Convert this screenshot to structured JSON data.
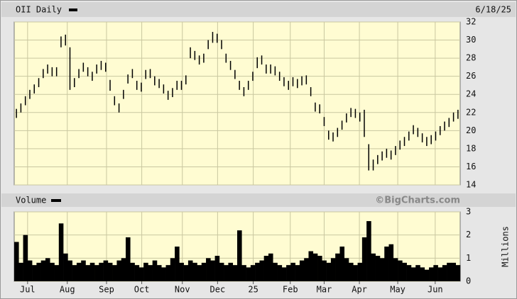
{
  "chart_data": [
    {
      "type": "range",
      "title": "OII Daily",
      "date": "6/18/25",
      "color": "#000000",
      "grid": true,
      "x": [
        0,
        1,
        2,
        3,
        4,
        5,
        6,
        7,
        8,
        9,
        10,
        11,
        12,
        13,
        14,
        15,
        16,
        17,
        18,
        19,
        20,
        21,
        22,
        23,
        24,
        25,
        26,
        27,
        28,
        29,
        30,
        31,
        32,
        33,
        34,
        35,
        36,
        37,
        38,
        39,
        40,
        41,
        42,
        43,
        44,
        45,
        46,
        47,
        48,
        49,
        50,
        51,
        52,
        53,
        54,
        55,
        56,
        57,
        58,
        59,
        60,
        61,
        62,
        63,
        64,
        65,
        66,
        67,
        68,
        69,
        70,
        71,
        72,
        73,
        74,
        75,
        76,
        77,
        78,
        79,
        80,
        81,
        82,
        83,
        84,
        85,
        86,
        87,
        88,
        89,
        90,
        91,
        92,
        93,
        94,
        95,
        96,
        97,
        98,
        99
      ],
      "high": [
        22.4,
        23,
        23.8,
        24.5,
        25.1,
        25.8,
        26.8,
        27.3,
        27,
        27,
        30.4,
        30.6,
        29.2,
        25.8,
        26.8,
        27.5,
        27,
        26.5,
        27.3,
        27.7,
        27.5,
        25.6,
        23.8,
        23,
        24.5,
        26.2,
        26.8,
        25.5,
        25.3,
        26.7,
        26.8,
        26,
        25.7,
        25.1,
        24.4,
        24.7,
        25.5,
        25.5,
        26.1,
        29.2,
        28.8,
        28.3,
        28.5,
        30,
        30.9,
        30.7,
        30,
        28.5,
        27.7,
        26.7,
        25.5,
        24.8,
        25.5,
        26.5,
        28.1,
        28.3,
        27.3,
        27.3,
        27.1,
        26.5,
        25.9,
        25.5,
        25.9,
        25.7,
        26,
        26.1,
        24.8,
        23.1,
        22.9,
        21.5,
        20,
        19.8,
        20.3,
        21.1,
        21.9,
        22.5,
        22.4,
        22,
        22.3,
        18.5,
        16.8,
        17.3,
        17.7,
        18,
        17.8,
        18.3,
        18.9,
        19.3,
        19.9,
        20.6,
        20.3,
        19.7,
        19.3,
        19.5,
        19.9,
        20.5,
        21,
        21.4,
        22,
        22.3
      ],
      "low": [
        21.4,
        22,
        22.8,
        23.5,
        24.1,
        24.8,
        25.8,
        26.3,
        26,
        26,
        29.2,
        29.4,
        24.5,
        24.8,
        25.8,
        26.5,
        26,
        25.5,
        26.3,
        26.7,
        26.5,
        24.4,
        22.8,
        22,
        23.5,
        25.2,
        25.8,
        24.5,
        24.3,
        25.7,
        25.8,
        25,
        24.7,
        24.1,
        23.4,
        23.7,
        24.5,
        24.5,
        25.1,
        28,
        27.8,
        27.3,
        27.5,
        29,
        29.7,
        29.7,
        29,
        27.5,
        26.7,
        25.7,
        24.5,
        23.8,
        24.5,
        25.5,
        26.9,
        27.3,
        26.3,
        26.3,
        26.1,
        25.5,
        24.9,
        24.5,
        24.9,
        24.7,
        25,
        25.1,
        23.8,
        22.1,
        21.9,
        20.5,
        19,
        18.8,
        19.3,
        20.1,
        20.9,
        21.5,
        21.4,
        21,
        19.3,
        15.6,
        15.6,
        16.3,
        16.7,
        17,
        16.8,
        17.3,
        17.9,
        18.3,
        18.9,
        19.6,
        19.3,
        18.7,
        18.3,
        18.5,
        18.9,
        19.5,
        20,
        20.4,
        21,
        21.3
      ],
      "xlim": [
        -0.5,
        99.5
      ],
      "ylim": [
        14,
        32
      ],
      "yticks": [
        14,
        16,
        18,
        20,
        22,
        24,
        26,
        28,
        30,
        32
      ]
    },
    {
      "type": "bar",
      "title": "Volume",
      "watermark": "©BigCharts.com",
      "ylabel": "Millions",
      "color": "#000000",
      "grid": true,
      "values": [
        1.7,
        0.8,
        2.0,
        0.9,
        0.7,
        0.8,
        0.9,
        1.0,
        0.8,
        0.7,
        2.5,
        1.2,
        0.9,
        0.7,
        0.8,
        0.9,
        0.7,
        0.8,
        0.7,
        0.8,
        0.9,
        0.8,
        0.7,
        0.9,
        1.0,
        1.9,
        0.8,
        0.7,
        0.6,
        0.8,
        0.7,
        0.9,
        0.7,
        0.6,
        0.7,
        1.0,
        1.5,
        0.8,
        0.7,
        0.9,
        0.8,
        0.7,
        0.8,
        1.0,
        0.9,
        1.1,
        0.8,
        0.7,
        0.8,
        0.7,
        2.2,
        0.7,
        0.6,
        0.7,
        0.8,
        0.9,
        1.1,
        1.2,
        0.8,
        0.7,
        0.6,
        0.7,
        0.8,
        0.7,
        0.9,
        1.0,
        1.3,
        1.2,
        1.1,
        0.9,
        0.8,
        1.0,
        1.2,
        1.5,
        1.0,
        0.8,
        0.7,
        0.8,
        1.9,
        2.6,
        1.2,
        1.1,
        1.0,
        1.5,
        1.6,
        1.0,
        0.9,
        0.8,
        0.7,
        0.6,
        0.7,
        0.6,
        0.5,
        0.6,
        0.7,
        0.6,
        0.7,
        0.8,
        0.8,
        0.7
      ],
      "xlim": [
        -0.5,
        99.5
      ],
      "ylim": [
        0,
        3
      ],
      "yticks": [
        0,
        1,
        2,
        3
      ],
      "xticks": [
        {
          "value": 2.5,
          "label": "Jul"
        },
        {
          "value": 11.4,
          "label": "Aug"
        },
        {
          "value": 20.2,
          "label": "Sep"
        },
        {
          "value": 28.1,
          "label": "Oct"
        },
        {
          "value": 37.2,
          "label": "Nov"
        },
        {
          "value": 45.1,
          "label": "Dec"
        },
        {
          "value": 53.1,
          "label": "25"
        },
        {
          "value": 61.4,
          "label": "Feb"
        },
        {
          "value": 69.0,
          "label": "Mar"
        },
        {
          "value": 76.9,
          "label": "Apr"
        },
        {
          "value": 85.5,
          "label": "May"
        },
        {
          "value": 93.9,
          "label": "Jun"
        }
      ]
    }
  ]
}
